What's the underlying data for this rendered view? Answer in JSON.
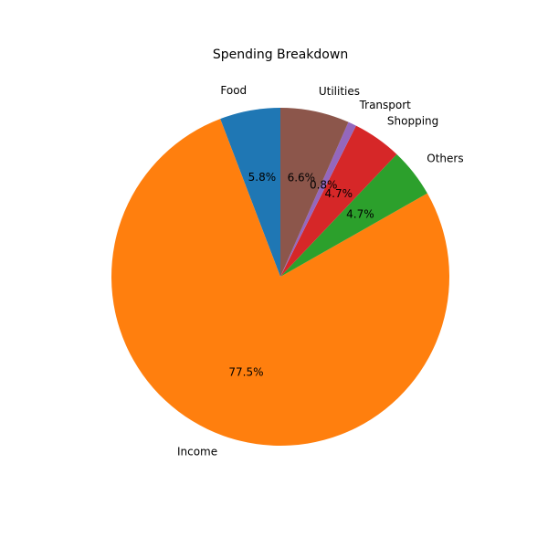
{
  "chart_data": {
    "type": "pie",
    "title": "Spending Breakdown",
    "start_angle_deg": 90,
    "direction": "counterclockwise",
    "slices": [
      {
        "label": "Food",
        "value": 5.8,
        "pct_label": "5.8%",
        "color": "#1f77b4"
      },
      {
        "label": "Income",
        "value": 77.5,
        "pct_label": "77.5%",
        "color": "#ff7f0e"
      },
      {
        "label": "Others",
        "value": 4.7,
        "pct_label": "4.7%",
        "color": "#2ca02c"
      },
      {
        "label": "Shopping",
        "value": 4.7,
        "pct_label": "4.7%",
        "color": "#d62728"
      },
      {
        "label": "Transport",
        "value": 0.8,
        "pct_label": "0.8%",
        "color": "#9467bd"
      },
      {
        "label": "Utilities",
        "value": 6.6,
        "pct_label": "6.6%",
        "color": "#8c564b"
      }
    ]
  }
}
